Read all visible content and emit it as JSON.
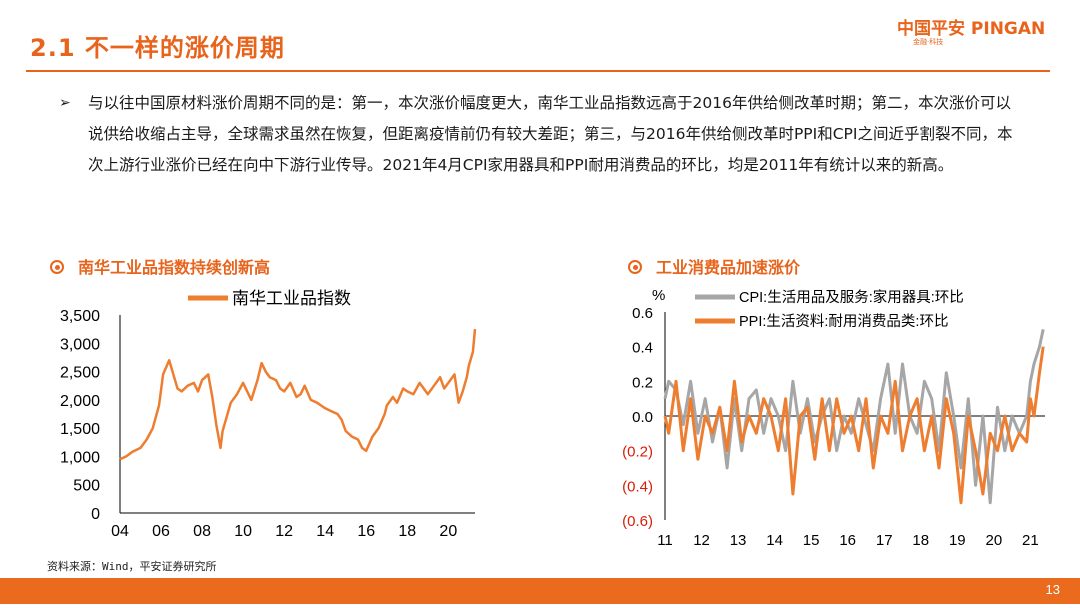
{
  "header": {
    "title": "2.1 不一样的涨价周期",
    "logo_main": "中国平安 PINGAN",
    "logo_sub": "金融·科技"
  },
  "bullet": {
    "mark": "➢",
    "text": "与以往中国原材料涨价周期不同的是：第一，本次涨价幅度更大，南华工业品指数远高于2016年供给侧改革时期；第二，本次涨价可以说供给收缩占主导，全球需求虽然在恢复，但距离疫情前仍有较大差距；第三，与2016年供给侧改革时PPI和CPI之间近乎割裂不同，本次上游行业涨价已经在向中下游行业传导。2021年4月CPI家用器具和PPI耐用消费品的环比，均是2011年有统计以来的新高。"
  },
  "left_chart_title": "南华工业品指数持续创新高",
  "right_chart_title": "工业消费品加速涨价",
  "source": "资料来源：Wind，平安证券研究所",
  "page_number": "13",
  "chart_data": [
    {
      "type": "line",
      "legend": [
        "南华工业品指数"
      ],
      "x_ticks": [
        "04",
        "06",
        "08",
        "10",
        "12",
        "14",
        "16",
        "18",
        "20"
      ],
      "y_ticks": [
        "3,500",
        "3,000",
        "2,500",
        "2,000",
        "1,500",
        "1,000",
        "500",
        "0"
      ],
      "ylim": [
        0,
        3500
      ],
      "xlim": [
        2004,
        2021.3
      ],
      "legend_position": "top",
      "color": "#ee7d2f",
      "series": [
        {
          "name": "南华工业品指数",
          "x": [
            2004.0,
            2004.3,
            2004.6,
            2005.0,
            2005.3,
            2005.6,
            2005.9,
            2006.1,
            2006.4,
            2006.8,
            2007.0,
            2007.3,
            2007.6,
            2007.8,
            2008.0,
            2008.3,
            2008.5,
            2008.7,
            2008.9,
            2009.0,
            2009.2,
            2009.4,
            2009.7,
            2010.0,
            2010.2,
            2010.4,
            2010.7,
            2010.9,
            2011.1,
            2011.3,
            2011.6,
            2011.8,
            2012.0,
            2012.3,
            2012.6,
            2012.8,
            2013.0,
            2013.3,
            2013.6,
            2013.8,
            2014.0,
            2014.3,
            2014.6,
            2014.8,
            2015.0,
            2015.3,
            2015.6,
            2015.8,
            2016.0,
            2016.3,
            2016.6,
            2016.9,
            2017.0,
            2017.3,
            2017.5,
            2017.8,
            2018.0,
            2018.3,
            2018.6,
            2018.8,
            2019.0,
            2019.3,
            2019.6,
            2019.8,
            2020.0,
            2020.3,
            2020.5,
            2020.7,
            2020.9,
            2021.0,
            2021.2,
            2021.3
          ],
          "values": [
            950,
            1000,
            1080,
            1150,
            1300,
            1500,
            1900,
            2450,
            2700,
            2200,
            2150,
            2250,
            2300,
            2150,
            2350,
            2450,
            2050,
            1550,
            1150,
            1450,
            1700,
            1950,
            2100,
            2300,
            2150,
            2000,
            2350,
            2650,
            2500,
            2400,
            2350,
            2200,
            2150,
            2300,
            2050,
            2100,
            2250,
            2000,
            1950,
            1900,
            1850,
            1800,
            1750,
            1650,
            1450,
            1350,
            1300,
            1150,
            1100,
            1350,
            1500,
            1750,
            1900,
            2050,
            1950,
            2200,
            2150,
            2100,
            2300,
            2200,
            2100,
            2250,
            2400,
            2200,
            2300,
            2450,
            1950,
            2150,
            2400,
            2600,
            2850,
            3250
          ]
        }
      ]
    },
    {
      "type": "line",
      "unit_label": "%",
      "x_ticks": [
        "11",
        "12",
        "13",
        "14",
        "15",
        "16",
        "17",
        "18",
        "19",
        "20",
        "21"
      ],
      "y_ticks": [
        "0.6",
        "0.4",
        "0.2",
        "0.0",
        "(0.2)",
        "(0.4)",
        "(0.6)"
      ],
      "negative_tick_color": "#d81e06",
      "ylim": [
        -0.6,
        0.6
      ],
      "xlim": [
        2011.0,
        2021.4
      ],
      "legend_position": "top",
      "series": [
        {
          "name": "CPI:生活用品及服务:家用器具:环比",
          "color": "#a6a6a6",
          "x": [
            2011.0,
            2011.1,
            2011.3,
            2011.5,
            2011.7,
            2011.9,
            2012.1,
            2012.3,
            2012.5,
            2012.7,
            2012.9,
            2013.1,
            2013.3,
            2013.5,
            2013.7,
            2013.9,
            2014.1,
            2014.3,
            2014.5,
            2014.7,
            2014.9,
            2015.1,
            2015.3,
            2015.5,
            2015.7,
            2015.9,
            2016.1,
            2016.3,
            2016.5,
            2016.7,
            2016.9,
            2017.1,
            2017.3,
            2017.5,
            2017.7,
            2017.9,
            2018.1,
            2018.3,
            2018.5,
            2018.7,
            2018.9,
            2019.1,
            2019.3,
            2019.5,
            2019.7,
            2019.9,
            2020.1,
            2020.3,
            2020.5,
            2020.7,
            2020.9,
            2021.0,
            2021.1,
            2021.25,
            2021.35
          ],
          "values": [
            0.1,
            0.2,
            0.15,
            -0.05,
            0.2,
            -0.1,
            0.1,
            -0.15,
            0.05,
            -0.3,
            0.1,
            -0.2,
            0.1,
            0.15,
            -0.1,
            0.1,
            0.0,
            -0.2,
            0.2,
            -0.1,
            0.1,
            -0.15,
            0.0,
            0.1,
            -0.2,
            0.0,
            -0.1,
            0.1,
            -0.05,
            -0.2,
            0.1,
            0.3,
            -0.1,
            0.3,
            0.0,
            -0.1,
            0.2,
            0.1,
            -0.2,
            0.25,
            0.0,
            -0.3,
            0.1,
            -0.4,
            0.0,
            -0.5,
            0.05,
            -0.2,
            0.0,
            -0.1,
            0.0,
            0.2,
            0.3,
            0.4,
            0.5
          ]
        },
        {
          "name": "PPI:生活资料:耐用消费品类:环比",
          "color": "#ee7d2f",
          "x": [
            2011.0,
            2011.1,
            2011.3,
            2011.5,
            2011.7,
            2011.9,
            2012.1,
            2012.3,
            2012.5,
            2012.7,
            2012.9,
            2013.1,
            2013.3,
            2013.5,
            2013.7,
            2013.9,
            2014.1,
            2014.3,
            2014.5,
            2014.7,
            2014.9,
            2015.1,
            2015.3,
            2015.5,
            2015.7,
            2015.9,
            2016.1,
            2016.3,
            2016.5,
            2016.7,
            2016.9,
            2017.1,
            2017.3,
            2017.5,
            2017.7,
            2017.9,
            2018.1,
            2018.3,
            2018.5,
            2018.7,
            2018.9,
            2019.1,
            2019.3,
            2019.5,
            2019.7,
            2019.9,
            2020.1,
            2020.3,
            2020.5,
            2020.7,
            2020.9,
            2021.0,
            2021.1,
            2021.25,
            2021.35
          ],
          "values": [
            0.0,
            -0.1,
            0.2,
            -0.2,
            0.1,
            -0.25,
            0.0,
            -0.1,
            0.05,
            -0.2,
            0.2,
            -0.15,
            0.0,
            -0.1,
            0.1,
            0.0,
            -0.2,
            0.1,
            -0.45,
            0.0,
            0.05,
            -0.25,
            0.1,
            -0.2,
            0.1,
            -0.1,
            0.0,
            -0.2,
            0.1,
            -0.3,
            0.0,
            -0.1,
            0.2,
            -0.2,
            0.0,
            0.1,
            -0.2,
            0.0,
            -0.3,
            0.1,
            -0.1,
            -0.5,
            0.0,
            -0.2,
            -0.45,
            -0.1,
            -0.2,
            0.0,
            -0.2,
            -0.1,
            -0.15,
            0.1,
            0.0,
            0.25,
            0.4
          ]
        }
      ]
    }
  ]
}
